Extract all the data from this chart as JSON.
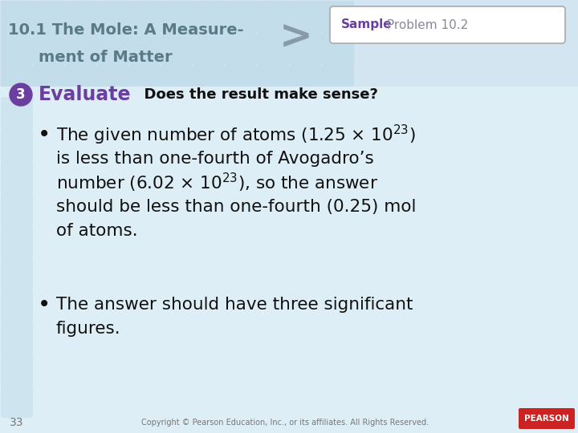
{
  "bg_color": "#deeef6",
  "header_tile_color": "#c2dcea",
  "title_line1": "10.1 The Mole: A Measure-",
  "title_line2": "ment of Matter",
  "title_color": "#5a7a8a",
  "arrow_color": "#8899aa",
  "sample_bold": "Sample",
  "sample_rest": " Problem 10.2",
  "sample_bold_color": "#6b3fa0",
  "sample_rest_color": "#888899",
  "badge_color": "#6b3fa0",
  "badge_text": "3",
  "evaluate_color": "#6b3fa0",
  "evaluate_text": "Evaluate",
  "question_text": "  Does the result make sense?",
  "bullet_text_color": "#111111",
  "b1l1": "The given number of atoms (1.25 × 10",
  "b1l1_sup": "23",
  "b1l1_end": ")",
  "b1l2": "is less than one-fourth of Avogadro’s",
  "b1l3": "number (6.02 × 10",
  "b1l3_sup": "23",
  "b1l3_end": "), so the answer",
  "b1l4": "should be less than one-fourth (0.25) mol",
  "b1l5": "of atoms.",
  "b2l1": "The answer should have three significant",
  "b2l2": "figures.",
  "footer_num": "33",
  "footer_copy": "Copyright © Pearson Education, Inc., or its affiliates. All Rights Reserved.",
  "footer_color": "#777777",
  "pearson_bg": "#cc2222",
  "pearson_text": "PEARSON"
}
